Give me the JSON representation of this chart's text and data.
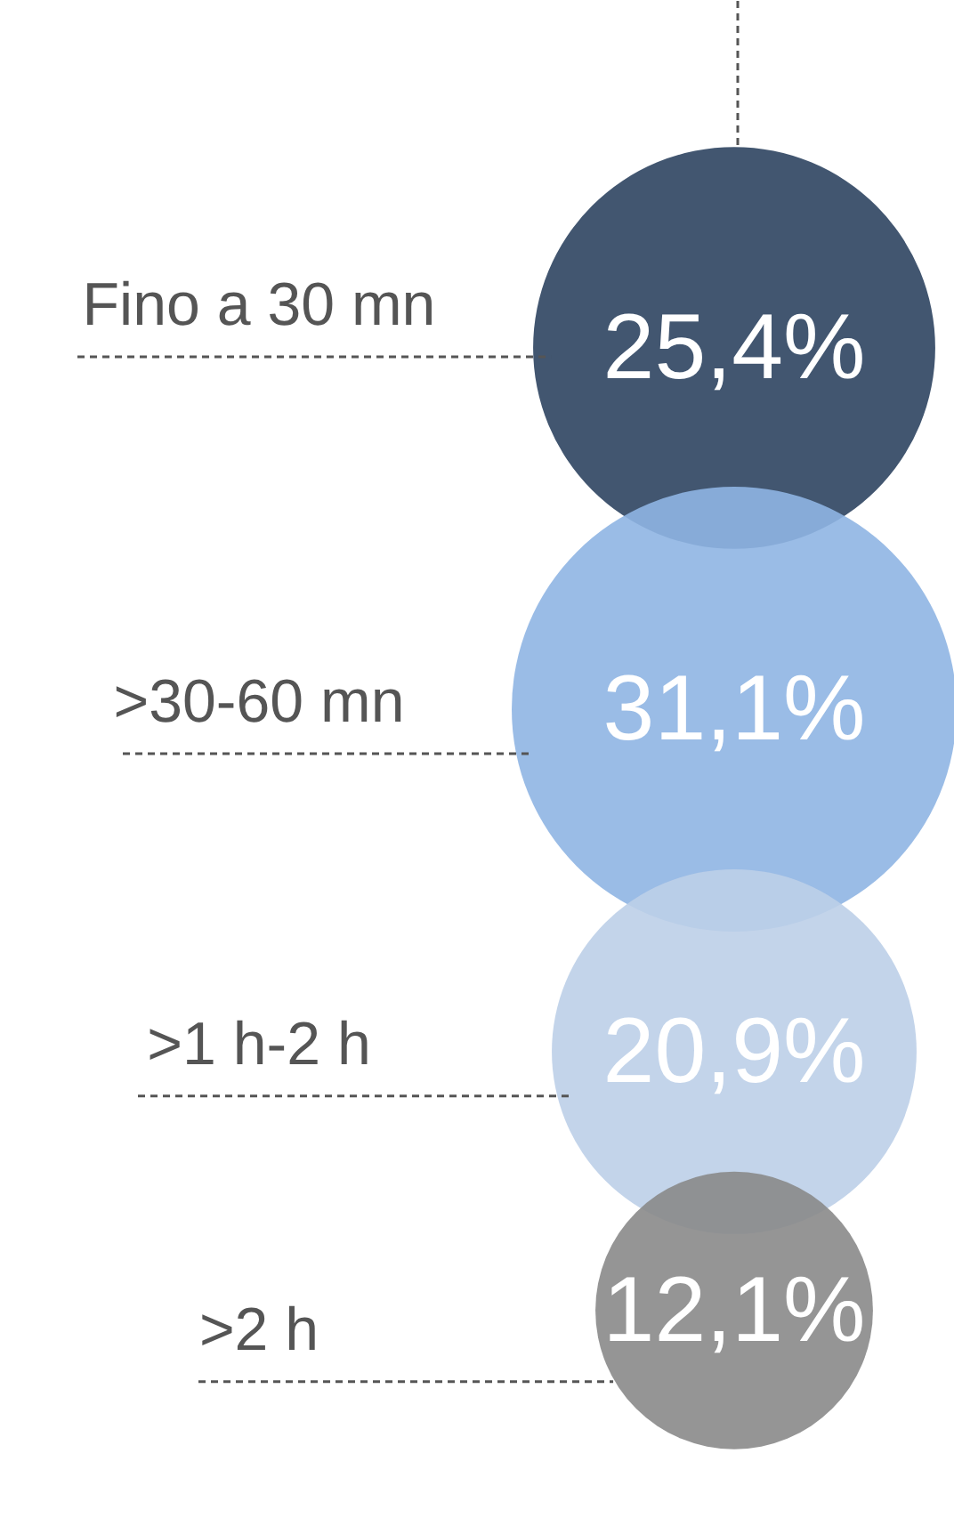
{
  "chart_data": {
    "type": "other",
    "categories": [
      "Fino a 30 mn",
      ">30-60 mn",
      ">1 h-2 h",
      ">2 h"
    ],
    "values": [
      25.4,
      31.1,
      20.9,
      12.1
    ],
    "value_labels": [
      "25,4%",
      "31,1%",
      "20,9%",
      "12,1%"
    ],
    "colors": [
      "#2e4460",
      "#8fb5e3",
      "#bccfe8",
      "#8a8a8a"
    ]
  }
}
